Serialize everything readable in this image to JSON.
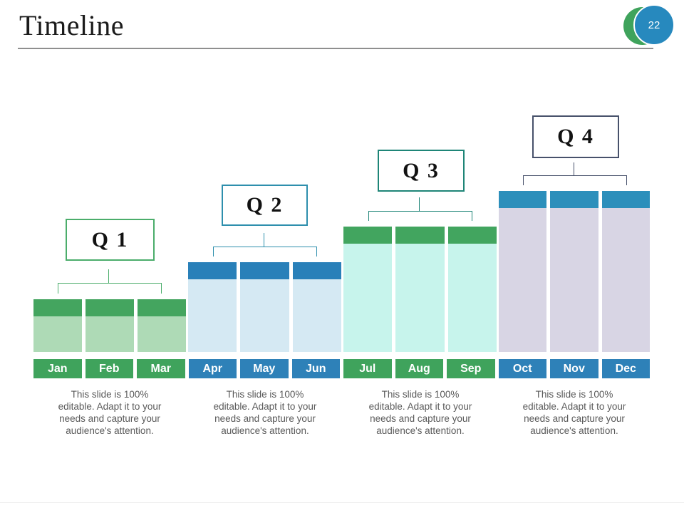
{
  "slide": {
    "title": "Timeline",
    "page_number": "22",
    "header_rule_color": "#8f8f8f"
  },
  "page_badge": {
    "back_circle_color": "#3fa35c",
    "front_circle_color": "#2789be"
  },
  "quarters": [
    {
      "label": "Q 1",
      "level": 1,
      "months": [
        "Jan",
        "Feb",
        "Mar"
      ],
      "caption": "This slide is 100% editable. Adapt it to your needs and capture your audience's attention.",
      "colors": {
        "accent": "#4bad6b",
        "cap": "#44a55f",
        "body": "#aedab6",
        "month_bg": "#3fa35c"
      }
    },
    {
      "label": "Q 2",
      "level": 2,
      "months": [
        "Apr",
        "May",
        "Jun"
      ],
      "caption": "This slide is 100% editable. Adapt it to your needs and capture your audience's attention.",
      "colors": {
        "accent": "#2e8fad",
        "cap": "#2980b9",
        "body": "#d5e9f3",
        "month_bg": "#2e81b8"
      }
    },
    {
      "label": "Q 3",
      "level": 3,
      "months": [
        "Jul",
        "Aug",
        "Sep"
      ],
      "caption": "This slide is 100% editable. Adapt it to your needs and capture your audience's attention.",
      "colors": {
        "accent": "#1e8577",
        "cap": "#42a55f",
        "body": "#c7f4ec",
        "month_bg": "#3fa35c"
      }
    },
    {
      "label": "Q 4",
      "level": 4,
      "months": [
        "Oct",
        "Nov",
        "Dec"
      ],
      "caption": "This slide is 100% editable. Adapt it to your needs and capture your audience's attention.",
      "colors": {
        "accent": "#47516b",
        "cap": "#2c8fbb",
        "body": "#d8d5e4",
        "month_bg": "#2e81b8"
      }
    }
  ]
}
